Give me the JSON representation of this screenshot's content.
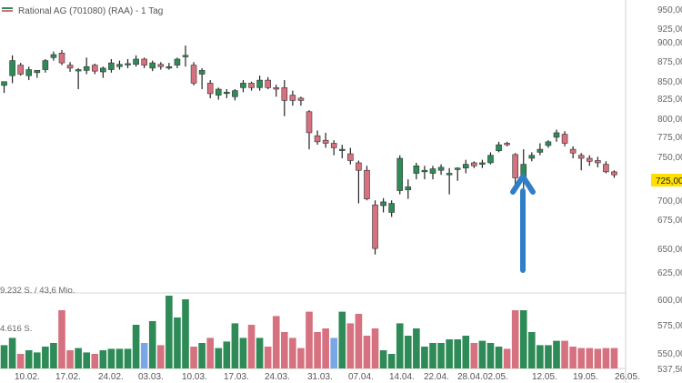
{
  "chart_data": {
    "type": "candlestick",
    "title": "Rational AG (701080) (RAA) - 1 Tag",
    "colors": {
      "up": "#2e8b57",
      "down": "#d6717f",
      "highlight_volume": "#7aa6e6",
      "last_price_badge": "#ffe000",
      "arrow": "#2f7fc8"
    },
    "price_axis": {
      "ticks": [
        "950,00",
        "925,00",
        "900,00",
        "875,00",
        "850,00",
        "825,00",
        "800,00",
        "775,00",
        "750,00",
        "725,00",
        "700,00",
        "675,00",
        "650,00",
        "625,00"
      ],
      "range": [
        612,
        952
      ],
      "last_price": "725,00"
    },
    "volume_axis": {
      "ticks": [
        "600,00",
        "575,00",
        "550,00",
        "537,50"
      ],
      "labels": [
        "9.232 S. / 43,6 Mio.",
        "4.616 S."
      ]
    },
    "x_labels": [
      "10.02.",
      "17.02.",
      "24.02.",
      "03.03.",
      "10.03.",
      "17.03.",
      "24.03.",
      "31.03.",
      "07.04.",
      "14.04.",
      "22.04.",
      "28.04.",
      "02.05.",
      "12.05.",
      "19.05.",
      "26.05."
    ],
    "annotation": "up-arrow",
    "candles": [
      {
        "o": 845,
        "h": 850,
        "l": 835,
        "c": 850,
        "v": 0.32
      },
      {
        "o": 858,
        "h": 885,
        "l": 848,
        "c": 878,
        "v": 0.42
      },
      {
        "o": 872,
        "h": 875,
        "l": 858,
        "c": 860,
        "v": 0.2
      },
      {
        "o": 858,
        "h": 870,
        "l": 852,
        "c": 866,
        "v": 0.25
      },
      {
        "o": 862,
        "h": 865,
        "l": 855,
        "c": 865,
        "v": 0.22
      },
      {
        "o": 866,
        "h": 880,
        "l": 862,
        "c": 878,
        "v": 0.3
      },
      {
        "o": 882,
        "h": 890,
        "l": 878,
        "c": 886,
        "v": 0.35
      },
      {
        "o": 888,
        "h": 892,
        "l": 872,
        "c": 875,
        "v": 0.8
      },
      {
        "o": 872,
        "h": 876,
        "l": 863,
        "c": 868,
        "v": 0.25
      },
      {
        "o": 866,
        "h": 868,
        "l": 840,
        "c": 866,
        "v": 0.28
      },
      {
        "o": 865,
        "h": 882,
        "l": 860,
        "c": 870,
        "v": 0.22
      },
      {
        "o": 872,
        "h": 874,
        "l": 860,
        "c": 864,
        "v": 0.2
      },
      {
        "o": 863,
        "h": 870,
        "l": 855,
        "c": 868,
        "v": 0.25
      },
      {
        "o": 866,
        "h": 880,
        "l": 862,
        "c": 875,
        "v": 0.27
      },
      {
        "o": 870,
        "h": 878,
        "l": 866,
        "c": 873,
        "v": 0.27
      },
      {
        "o": 874,
        "h": 880,
        "l": 868,
        "c": 874,
        "v": 0.27
      },
      {
        "o": 873,
        "h": 885,
        "l": 870,
        "c": 880,
        "v": 0.6
      },
      {
        "o": 880,
        "h": 882,
        "l": 868,
        "c": 872,
        "v": 0.35,
        "hl": true
      },
      {
        "o": 868,
        "h": 878,
        "l": 864,
        "c": 875,
        "v": 0.65
      },
      {
        "o": 873,
        "h": 876,
        "l": 866,
        "c": 870,
        "v": 0.32
      },
      {
        "o": 868,
        "h": 875,
        "l": 866,
        "c": 870,
        "v": 1.0
      },
      {
        "o": 872,
        "h": 882,
        "l": 868,
        "c": 880,
        "v": 0.7
      },
      {
        "o": 883,
        "h": 898,
        "l": 870,
        "c": 885,
        "v": 0.95
      },
      {
        "o": 872,
        "h": 876,
        "l": 845,
        "c": 848,
        "v": 0.3
      },
      {
        "o": 860,
        "h": 868,
        "l": 840,
        "c": 865,
        "v": 0.35
      },
      {
        "o": 848,
        "h": 852,
        "l": 828,
        "c": 834,
        "v": 0.42
      },
      {
        "o": 832,
        "h": 842,
        "l": 826,
        "c": 840,
        "v": 0.28
      },
      {
        "o": 835,
        "h": 840,
        "l": 828,
        "c": 836,
        "v": 0.37
      },
      {
        "o": 830,
        "h": 840,
        "l": 825,
        "c": 838,
        "v": 0.62
      },
      {
        "o": 842,
        "h": 852,
        "l": 836,
        "c": 848,
        "v": 0.42
      },
      {
        "o": 848,
        "h": 850,
        "l": 838,
        "c": 842,
        "v": 0.6
      },
      {
        "o": 842,
        "h": 858,
        "l": 838,
        "c": 852,
        "v": 0.42
      },
      {
        "o": 852,
        "h": 856,
        "l": 840,
        "c": 842,
        "v": 0.3
      },
      {
        "o": 842,
        "h": 846,
        "l": 830,
        "c": 840,
        "v": 0.72
      },
      {
        "o": 842,
        "h": 852,
        "l": 804,
        "c": 825,
        "v": 0.5
      },
      {
        "o": 832,
        "h": 838,
        "l": 818,
        "c": 825,
        "v": 0.42
      },
      {
        "o": 828,
        "h": 830,
        "l": 818,
        "c": 825,
        "v": 0.28
      },
      {
        "o": 810,
        "h": 812,
        "l": 760,
        "c": 782,
        "v": 0.78
      },
      {
        "o": 778,
        "h": 785,
        "l": 766,
        "c": 770,
        "v": 0.5
      },
      {
        "o": 772,
        "h": 782,
        "l": 762,
        "c": 768,
        "v": 0.55
      },
      {
        "o": 768,
        "h": 772,
        "l": 752,
        "c": 762,
        "v": 0.42,
        "hl": true
      },
      {
        "o": 760,
        "h": 766,
        "l": 748,
        "c": 760,
        "v": 0.78
      },
      {
        "o": 754,
        "h": 762,
        "l": 740,
        "c": 745,
        "v": 0.62
      },
      {
        "o": 742,
        "h": 745,
        "l": 688,
        "c": 732,
        "v": 0.75
      },
      {
        "o": 732,
        "h": 738,
        "l": 692,
        "c": 694,
        "v": 0.45
      },
      {
        "o": 686,
        "h": 692,
        "l": 620,
        "c": 628,
        "v": 0.55
      },
      {
        "o": 685,
        "h": 695,
        "l": 676,
        "c": 690,
        "v": 0.25
      },
      {
        "o": 676,
        "h": 692,
        "l": 670,
        "c": 688,
        "v": 0.2
      },
      {
        "o": 705,
        "h": 752,
        "l": 700,
        "c": 748,
        "v": 0.62
      },
      {
        "o": 706,
        "h": 720,
        "l": 694,
        "c": 710,
        "v": 0.45
      },
      {
        "o": 728,
        "h": 742,
        "l": 720,
        "c": 738,
        "v": 0.55
      },
      {
        "o": 730,
        "h": 738,
        "l": 720,
        "c": 732,
        "v": 0.3
      },
      {
        "o": 728,
        "h": 738,
        "l": 720,
        "c": 734,
        "v": 0.35
      },
      {
        "o": 732,
        "h": 740,
        "l": 726,
        "c": 736,
        "v": 0.35
      },
      {
        "o": 726,
        "h": 735,
        "l": 700,
        "c": 728,
        "v": 0.4
      },
      {
        "o": 733,
        "h": 736,
        "l": 718,
        "c": 735,
        "v": 0.4
      },
      {
        "o": 735,
        "h": 746,
        "l": 728,
        "c": 740,
        "v": 0.45
      },
      {
        "o": 742,
        "h": 744,
        "l": 735,
        "c": 738,
        "v": 0.35
      },
      {
        "o": 740,
        "h": 746,
        "l": 735,
        "c": 742,
        "v": 0.38
      },
      {
        "o": 742,
        "h": 756,
        "l": 740,
        "c": 752,
        "v": 0.35
      },
      {
        "o": 758,
        "h": 770,
        "l": 756,
        "c": 766,
        "v": 0.3
      },
      {
        "o": 768,
        "h": 770,
        "l": 764,
        "c": 766,
        "v": 0.27
      },
      {
        "o": 753,
        "h": 755,
        "l": 708,
        "c": 722,
        "v": 0.8
      },
      {
        "o": 722,
        "h": 760,
        "l": 706,
        "c": 740,
        "v": 0.8
      },
      {
        "o": 748,
        "h": 756,
        "l": 744,
        "c": 752,
        "v": 0.5
      },
      {
        "o": 756,
        "h": 768,
        "l": 752,
        "c": 760,
        "v": 0.32
      },
      {
        "o": 765,
        "h": 772,
        "l": 762,
        "c": 770,
        "v": 0.32
      },
      {
        "o": 776,
        "h": 786,
        "l": 770,
        "c": 782,
        "v": 0.38
      },
      {
        "o": 780,
        "h": 784,
        "l": 764,
        "c": 768,
        "v": 0.38
      },
      {
        "o": 760,
        "h": 764,
        "l": 748,
        "c": 755,
        "v": 0.3
      },
      {
        "o": 752,
        "h": 755,
        "l": 732,
        "c": 748,
        "v": 0.28
      },
      {
        "o": 748,
        "h": 752,
        "l": 738,
        "c": 744,
        "v": 0.28
      },
      {
        "o": 745,
        "h": 750,
        "l": 736,
        "c": 742,
        "v": 0.27
      },
      {
        "o": 740,
        "h": 744,
        "l": 728,
        "c": 730,
        "v": 0.28
      },
      {
        "o": 730,
        "h": 732,
        "l": 722,
        "c": 726,
        "v": 0.28
      }
    ]
  }
}
